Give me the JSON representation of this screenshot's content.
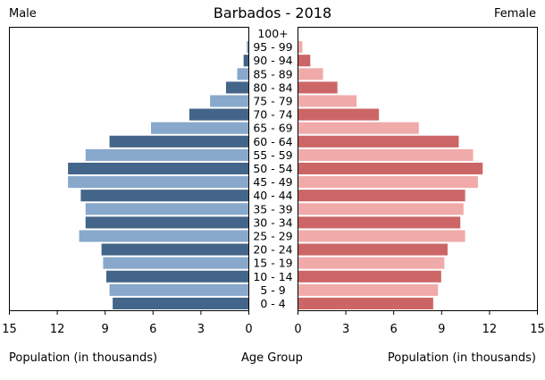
{
  "header": {
    "title": "Barbados - 2018",
    "left_label": "Male",
    "right_label": "Female"
  },
  "footer": {
    "left_axis_label": "Population (in thousands)",
    "center_label": "Age Group",
    "right_axis_label": "Population (in thousands)"
  },
  "colors": {
    "male_dark": "#44658a",
    "male_light": "#88a8cc",
    "female_dark": "#cc6666",
    "female_light": "#f0aaaa",
    "axis": "#000000"
  },
  "chart_data": {
    "type": "bar",
    "orientation": "horizontal",
    "title": "Barbados - 2018",
    "xlabel": "Population (in thousands)",
    "ylabel": "Age Group",
    "xlim": [
      0,
      15
    ],
    "xticks": [
      0,
      3,
      6,
      9,
      12,
      15
    ],
    "grid": false,
    "categories": [
      "0 - 4",
      "5 - 9",
      "10 - 14",
      "15 - 19",
      "20 - 24",
      "25 - 29",
      "30 - 34",
      "35 - 39",
      "40 - 44",
      "45 - 49",
      "50 - 54",
      "55 - 59",
      "60 - 64",
      "65 - 69",
      "70 - 74",
      "75 - 79",
      "80 - 84",
      "85 - 89",
      "90 - 94",
      "95 - 99",
      "100+"
    ],
    "series": [
      {
        "name": "Male",
        "values": [
          8.5,
          8.7,
          8.9,
          9.1,
          9.2,
          10.6,
          10.2,
          10.2,
          10.5,
          11.3,
          11.3,
          10.2,
          8.7,
          6.1,
          3.7,
          2.4,
          1.4,
          0.7,
          0.3,
          0.1,
          0.0
        ]
      },
      {
        "name": "Female",
        "values": [
          8.5,
          8.8,
          9.0,
          9.2,
          9.4,
          10.5,
          10.2,
          10.4,
          10.5,
          11.3,
          11.6,
          11.0,
          10.1,
          7.6,
          5.1,
          3.7,
          2.5,
          1.6,
          0.8,
          0.3,
          0.0
        ]
      }
    ]
  }
}
